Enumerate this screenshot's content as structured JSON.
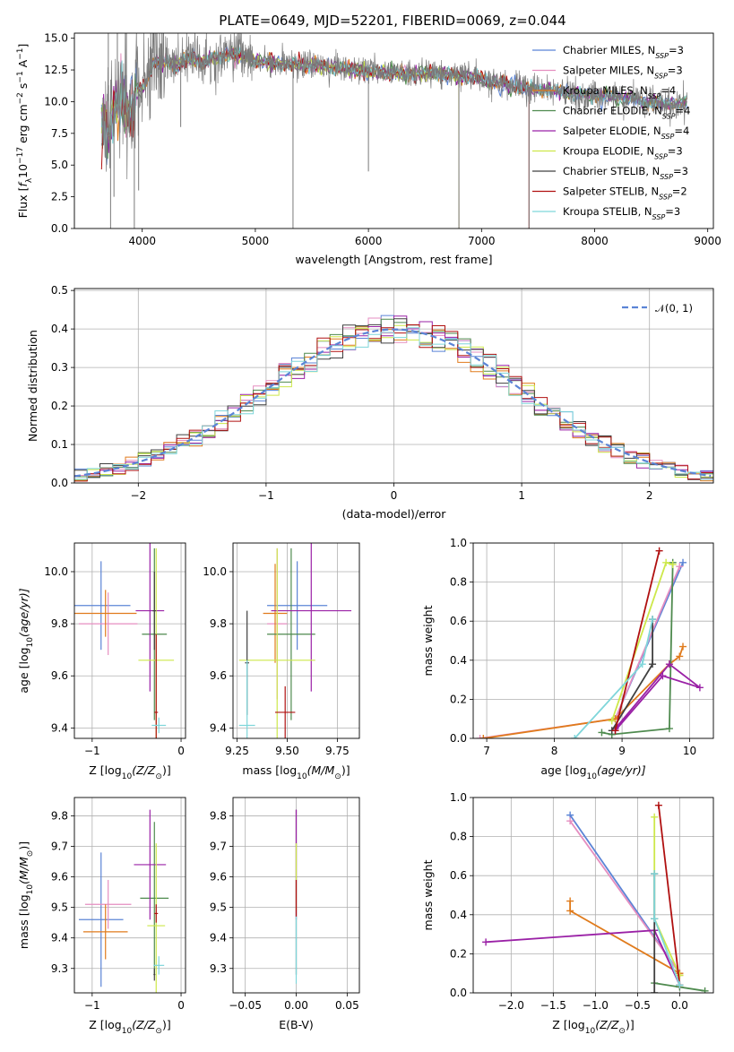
{
  "figure": {
    "title": "PLATE=0649, MJD=52201, FIBERID=0069, z=0.044"
  },
  "colors": {
    "Chabrier MILES": "#5b84d6",
    "Salpeter MILES": "#e58ec0",
    "Kroupa MILES": "#e07b1c",
    "Chabrier ELODIE": "#4e8a4e",
    "Salpeter ELODIE": "#9a21a6",
    "Kroupa ELODIE": "#cde84a",
    "Chabrier STELIB": "#404040",
    "Salpeter STELIB": "#b01010",
    "Kroupa STELIB": "#7fd6da"
  },
  "chart_data": [
    {
      "id": "spectrum",
      "type": "line",
      "title": "PLATE=0649, MJD=52201, FIBERID=0069, z=0.044",
      "xlabel": "wavelength [Angstrom, rest frame]",
      "ylabel_parts": [
        "Flux [",
        "f",
        "λ",
        "10",
        "−17",
        " erg cm",
        "−2",
        " s",
        "−1",
        " A",
        "−1",
        "]"
      ],
      "xlim": [
        3400,
        9050
      ],
      "ylim": [
        0,
        15.4
      ],
      "xticks": [
        4000,
        5000,
        6000,
        7000,
        8000,
        9000
      ],
      "yticks": [
        0.0,
        2.5,
        5.0,
        7.5,
        10.0,
        12.5,
        15.0
      ],
      "grid": false,
      "legend_position": "right",
      "legend": [
        {
          "name": "Chabrier MILES",
          "nssp": "3"
        },
        {
          "name": "Salpeter MILES",
          "nssp": "3"
        },
        {
          "name": "Kroupa MILES",
          "nssp": "4"
        },
        {
          "name": "Chabrier ELODIE",
          "nssp": "4"
        },
        {
          "name": "Salpeter ELODIE",
          "nssp": "4"
        },
        {
          "name": "Kroupa ELODIE",
          "nssp": "3"
        },
        {
          "name": "Chabrier STELIB",
          "nssp": "3"
        },
        {
          "name": "Salpeter STELIB",
          "nssp": "2"
        },
        {
          "name": "Kroupa STELIB",
          "nssp": "3"
        }
      ],
      "nssp_label": [
        "N",
        "SSP",
        "="
      ],
      "data_continuum": {
        "x": [
          3650,
          3700,
          3750,
          3800,
          3850,
          3900,
          3950,
          4000,
          4100,
          4200,
          4300,
          4400,
          4500,
          4600,
          4700,
          4800,
          4900,
          5000,
          5200,
          5400,
          5600,
          5800,
          6000,
          6200,
          6400,
          6600,
          6800,
          7000,
          7200,
          7400,
          7600,
          7800,
          8000,
          8200,
          8400,
          8600,
          8800
        ],
        "y": [
          8.5,
          7.2,
          9.5,
          10.0,
          10.3,
          9.0,
          10.8,
          11.0,
          13.0,
          13.2,
          12.8,
          13.4,
          13.2,
          13.3,
          13.6,
          13.8,
          13.6,
          13.2,
          13.0,
          12.9,
          12.8,
          12.6,
          12.4,
          12.3,
          12.2,
          12.2,
          12.0,
          11.8,
          11.4,
          11.0,
          10.9,
          10.7,
          10.5,
          10.3,
          10.1,
          9.9,
          9.8
        ]
      },
      "data_dips": [
        {
          "x": 3720,
          "y": 0
        },
        {
          "x": 3750,
          "y": 2.5
        },
        {
          "x": 3930,
          "y": 0
        },
        {
          "x": 3968,
          "y": 3.0
        },
        {
          "x": 4340,
          "y": 8.0
        },
        {
          "x": 5333,
          "y": 0
        },
        {
          "x": 6000,
          "y": 4.5
        },
        {
          "x": 6800,
          "y": 0
        },
        {
          "x": 7420,
          "y": 0
        },
        {
          "x": 3700,
          "y": 15.4
        },
        {
          "x": 3780,
          "y": 15.4
        },
        {
          "x": 3860,
          "y": 15.4
        }
      ],
      "model_cutoffs": {
        "Salpeter STELIB": 7420,
        "Kroupa ELODIE": 6800,
        "Salpeter MILES": 6800
      }
    },
    {
      "id": "residuals",
      "type": "histogram",
      "xlabel": "(data-model)/error",
      "ylabel": "Normed distribution",
      "xlim": [
        -2.5,
        2.5
      ],
      "ylim": [
        0,
        0.505
      ],
      "xticks": [
        -2,
        -1,
        0,
        1,
        2
      ],
      "yticks": [
        0.0,
        0.1,
        0.2,
        0.3,
        0.4,
        0.5
      ],
      "grid": true,
      "legend": [
        {
          "name": "𝒩(0, 1)",
          "style": "dashed"
        }
      ],
      "legend_position": "top-right",
      "bin_width": 0.1
    },
    {
      "id": "age-vs-Z",
      "type": "errorbar",
      "xlabel_parts": [
        "Z [log",
        "10",
        "(Z/Z",
        "⊙",
        ")]"
      ],
      "ylabel_parts": [
        "age  [log",
        "10",
        "(age/yr)]"
      ],
      "xlim": [
        -1.2,
        0.05
      ],
      "ylim": [
        9.36,
        10.11
      ],
      "xticks": [
        -1,
        0
      ],
      "yticks": [
        9.4,
        9.6,
        9.8,
        10.0
      ],
      "grid": true,
      "points": [
        {
          "model": "Chabrier MILES",
          "x": -0.9,
          "xerr": 0.33,
          "y": 9.87,
          "yerr": 0.17
        },
        {
          "model": "Salpeter MILES",
          "x": -0.82,
          "xerr": 0.33,
          "y": 9.8,
          "yerr": 0.12
        },
        {
          "model": "Kroupa MILES",
          "x": -0.85,
          "xerr": 0.35,
          "y": 9.84,
          "yerr": 0.09
        },
        {
          "model": "Chabrier ELODIE",
          "x": -0.3,
          "xerr": 0.14,
          "y": 9.76,
          "yerr": 0.33
        },
        {
          "model": "Salpeter ELODIE",
          "x": -0.35,
          "xerr": 0.16,
          "y": 9.85,
          "yerr": 0.31
        },
        {
          "model": "Kroupa ELODIE",
          "x": -0.28,
          "xerr": 0.2,
          "y": 9.66,
          "yerr": 0.43
        },
        {
          "model": "Chabrier STELIB",
          "x": -0.3,
          "xerr": 0.02,
          "y": 9.85,
          "yerr": 0.15
        },
        {
          "model": "Salpeter STELIB",
          "x": -0.28,
          "xerr": 0.02,
          "y": 9.46,
          "yerr": 0.3
        },
        {
          "model": "Kroupa STELIB",
          "x": -0.25,
          "xerr": 0.08,
          "y": 9.41,
          "yerr": 0.03
        }
      ]
    },
    {
      "id": "age-vs-mass",
      "type": "errorbar",
      "xlabel_parts": [
        "mass [log",
        "10",
        "(M/M",
        "⊙",
        ")]"
      ],
      "ylabel_parts": [],
      "xlim": [
        9.23,
        9.86
      ],
      "ylim": [
        9.36,
        10.11
      ],
      "xticks": [
        9.25,
        9.5,
        9.75
      ],
      "yticks": [
        9.4,
        9.6,
        9.8,
        10.0
      ],
      "grid": true,
      "points": [
        {
          "model": "Chabrier MILES",
          "x": 9.55,
          "xerr": 0.15,
          "y": 9.87,
          "yerr": 0.17
        },
        {
          "model": "Salpeter MILES",
          "x": 9.45,
          "xerr": 0.05,
          "y": 9.8,
          "yerr": 0.29
        },
        {
          "model": "Kroupa MILES",
          "x": 9.44,
          "xerr": 0.06,
          "y": 9.84,
          "yerr": 0.19
        },
        {
          "model": "Chabrier ELODIE",
          "x": 9.52,
          "xerr": 0.12,
          "y": 9.76,
          "yerr": 0.33
        },
        {
          "model": "Salpeter ELODIE",
          "x": 9.62,
          "xerr": 0.2,
          "y": 9.85,
          "yerr": 0.31
        },
        {
          "model": "Kroupa ELODIE",
          "x": 9.45,
          "xerr": 0.19,
          "y": 9.66,
          "yerr": 0.43
        },
        {
          "model": "Chabrier STELIB",
          "x": 9.3,
          "xerr": 0.01,
          "y": 9.65,
          "yerr": 0.2
        },
        {
          "model": "Salpeter STELIB",
          "x": 9.49,
          "xerr": 0.05,
          "y": 9.46,
          "yerr": 0.1
        },
        {
          "model": "Kroupa STELIB",
          "x": 9.3,
          "xerr": 0.04,
          "y": 9.41,
          "yerr": 0.25
        }
      ]
    },
    {
      "id": "weight-vs-age",
      "type": "line",
      "xlabel_parts": [
        "age  [log",
        "10",
        "(age/yr)]"
      ],
      "ylabel": "mass weight",
      "xlim": [
        6.8,
        10.35
      ],
      "ylim": [
        0,
        1.0
      ],
      "xticks": [
        7,
        8,
        9,
        10
      ],
      "yticks": [
        0.0,
        0.2,
        0.4,
        0.6,
        0.8,
        1.0
      ],
      "grid": true,
      "series": [
        {
          "model": "Chabrier MILES",
          "x": [
            8.9,
            9.9
          ],
          "y": [
            0.1,
            0.9
          ]
        },
        {
          "model": "Salpeter MILES",
          "x": [
            6.9,
            8.9,
            9.85
          ],
          "y": [
            0.0,
            0.1,
            0.88
          ]
        },
        {
          "model": "Kroupa MILES",
          "x": [
            6.95,
            8.9,
            9.7,
            9.85,
            9.9
          ],
          "y": [
            0.0,
            0.1,
            0.38,
            0.42,
            0.47
          ]
        },
        {
          "model": "Chabrier ELODIE",
          "x": [
            8.7,
            8.85,
            9.7,
            9.75
          ],
          "y": [
            0.03,
            0.02,
            0.05,
            0.9
          ]
        },
        {
          "model": "Salpeter ELODIE",
          "x": [
            8.9,
            9.7,
            10.15,
            9.6,
            8.9
          ],
          "y": [
            0.05,
            0.38,
            0.26,
            0.32,
            0.04
          ]
        },
        {
          "model": "Kroupa ELODIE",
          "x": [
            8.85,
            9.65,
            9.75
          ],
          "y": [
            0.09,
            0.9,
            0.89
          ]
        },
        {
          "model": "Chabrier STELIB",
          "x": [
            8.85,
            9.45,
            9.45
          ],
          "y": [
            0.04,
            0.38,
            0.61
          ]
        },
        {
          "model": "Salpeter STELIB",
          "x": [
            8.9,
            9.55
          ],
          "y": [
            0.04,
            0.96
          ]
        },
        {
          "model": "Kroupa STELIB",
          "x": [
            8.3,
            9.3,
            9.45
          ],
          "y": [
            0.0,
            0.38,
            0.61
          ]
        }
      ]
    },
    {
      "id": "mass-vs-Z",
      "type": "errorbar",
      "xlabel_parts": [
        "Z [log",
        "10",
        "(Z/Z",
        "⊙",
        ")]"
      ],
      "ylabel_parts": [
        "mass [log",
        "10",
        "(M/M",
        "⊙",
        ")]"
      ],
      "xlim": [
        -1.2,
        0.05
      ],
      "ylim": [
        9.22,
        9.86
      ],
      "xticks": [
        -1,
        0
      ],
      "yticks": [
        9.3,
        9.4,
        9.5,
        9.6,
        9.7,
        9.8
      ],
      "grid": true,
      "points": [
        {
          "model": "Chabrier MILES",
          "x": -0.9,
          "xerr": 0.25,
          "y": 9.46,
          "yerr": 0.22
        },
        {
          "model": "Salpeter MILES",
          "x": -0.82,
          "xerr": 0.26,
          "y": 9.51,
          "yerr": 0.08
        },
        {
          "model": "Kroupa MILES",
          "x": -0.85,
          "xerr": 0.25,
          "y": 9.42,
          "yerr": 0.09
        },
        {
          "model": "Chabrier ELODIE",
          "x": -0.3,
          "xerr": 0.16,
          "y": 9.53,
          "yerr": 0.25
        },
        {
          "model": "Salpeter ELODIE",
          "x": -0.35,
          "xerr": 0.18,
          "y": 9.64,
          "yerr": 0.18
        },
        {
          "model": "Kroupa ELODIE",
          "x": -0.28,
          "xerr": 0.1,
          "y": 9.44,
          "yerr": 0.27
        },
        {
          "model": "Chabrier STELIB",
          "x": -0.3,
          "xerr": 0.01,
          "y": 9.28,
          "yerr": 0.02
        },
        {
          "model": "Salpeter STELIB",
          "x": -0.28,
          "xerr": 0.02,
          "y": 9.48,
          "yerr": 0.03
        },
        {
          "model": "Kroupa STELIB",
          "x": -0.25,
          "xerr": 0.06,
          "y": 9.31,
          "yerr": 0.03
        }
      ]
    },
    {
      "id": "mass-vs-ebv",
      "type": "errorbar",
      "xlabel": "E(B-V)",
      "ylabel_parts": [],
      "xlim": [
        -0.062,
        0.062
      ],
      "ylim": [
        9.22,
        9.86
      ],
      "xticks": [
        -0.05,
        0.0,
        0.05
      ],
      "xtick_labels": [
        "−0.05",
        "0.00",
        "0.05"
      ],
      "yticks": [
        9.3,
        9.4,
        9.5,
        9.6,
        9.7,
        9.8
      ],
      "grid": true,
      "points": [
        {
          "model": "Chabrier STELIB",
          "x": 0.0,
          "xerr": 0,
          "y": 9.55,
          "yerr": 0.27
        },
        {
          "model": "Salpeter ELODIE",
          "x": 0.0,
          "xerr": 0,
          "y": 9.64,
          "yerr": 0.18
        },
        {
          "model": "Kroupa ELODIE",
          "x": 0.0,
          "xerr": 0,
          "y": 9.6,
          "yerr": 0.11
        },
        {
          "model": "Salpeter STELIB",
          "x": 0.0,
          "xerr": 0,
          "y": 9.53,
          "yerr": 0.06
        },
        {
          "model": "Kroupa STELIB",
          "x": 0.0,
          "xerr": 0,
          "y": 9.36,
          "yerr": 0.11
        }
      ]
    },
    {
      "id": "weight-vs-Z",
      "type": "line",
      "xlabel_parts": [
        "Z [log",
        "10",
        "(Z/Z",
        "⊙",
        ")]"
      ],
      "ylabel": "mass weight",
      "xlim": [
        -2.45,
        0.4
      ],
      "ylim": [
        0,
        1.0
      ],
      "xticks": [
        -2.0,
        -1.5,
        -1.0,
        -0.5,
        0.0
      ],
      "xtick_labels": [
        "−2.0",
        "−1.5",
        "−1.0",
        "−0.5",
        "0.0"
      ],
      "yticks": [
        0.0,
        0.2,
        0.4,
        0.6,
        0.8,
        1.0
      ],
      "grid": true,
      "series": [
        {
          "model": "Chabrier MILES",
          "x": [
            -1.3,
            0.0
          ],
          "y": [
            0.91,
            0.1
          ]
        },
        {
          "model": "Salpeter MILES",
          "x": [
            -1.3,
            0.0
          ],
          "y": [
            0.88,
            0.1
          ]
        },
        {
          "model": "Kroupa MILES",
          "x": [
            -1.3,
            -1.3,
            0.0,
            0.0
          ],
          "y": [
            0.47,
            0.42,
            0.1,
            0.09
          ]
        },
        {
          "model": "Chabrier ELODIE",
          "x": [
            -0.3,
            0.0,
            0.3
          ],
          "y": [
            0.05,
            0.03,
            0.01
          ]
        },
        {
          "model": "Salpeter ELODIE",
          "x": [
            -2.3,
            -0.3,
            0.0
          ],
          "y": [
            0.26,
            0.32,
            0.04
          ]
        },
        {
          "model": "Kroupa ELODIE",
          "x": [
            -0.3,
            -0.3,
            0.0
          ],
          "y": [
            0.9,
            0.38,
            0.09
          ]
        },
        {
          "model": "Chabrier STELIB",
          "x": [
            -0.3,
            -0.3,
            -0.3
          ],
          "y": [
            0.0,
            0.38,
            0.61
          ]
        },
        {
          "model": "Salpeter STELIB",
          "x": [
            -0.25,
            0.0
          ],
          "y": [
            0.96,
            0.04
          ]
        },
        {
          "model": "Kroupa STELIB",
          "x": [
            -0.3,
            -0.3,
            0.0
          ],
          "y": [
            0.61,
            0.38,
            0.04
          ]
        }
      ]
    }
  ]
}
